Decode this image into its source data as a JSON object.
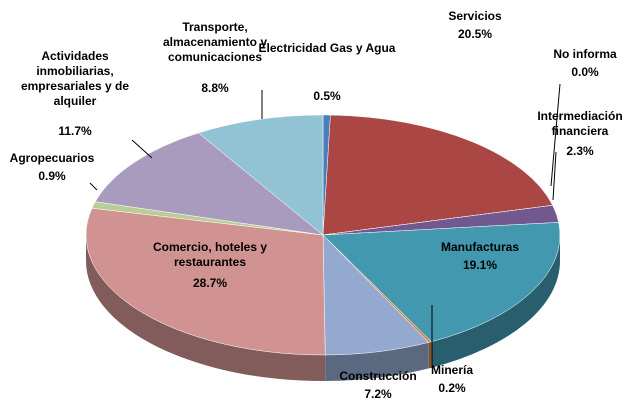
{
  "chart_data": {
    "type": "pie3d",
    "categories": [
      "Electricidad Gas y Agua",
      "Servicios",
      "No informa",
      "Intermediación financiera",
      "Manufacturas",
      "Minería",
      "Construcción",
      "Comercio, hoteles y restaurantes",
      "Agropecuarios",
      "Actividades inmobiliarias, empresariales y de alquiler",
      "Transporte, almacenamiento y comunicaciones"
    ],
    "values": [
      0.5,
      20.5,
      0.0,
      2.3,
      19.1,
      0.2,
      7.2,
      28.7,
      0.9,
      11.7,
      8.8
    ],
    "value_labels": [
      "0.5%",
      "20.5%",
      "0.0%",
      "2.3%",
      "19.1%",
      "0.2%",
      "7.2%",
      "28.7%",
      "0.9%",
      "11.7%",
      "8.8%"
    ],
    "colors": [
      "#4a7ebb",
      "#aa4643",
      "#db843d",
      "#71588f",
      "#4198af",
      "#db843d",
      "#93a9cf",
      "#d19392",
      "#b9cd96",
      "#a99bbd",
      "#92c3d4"
    ]
  }
}
